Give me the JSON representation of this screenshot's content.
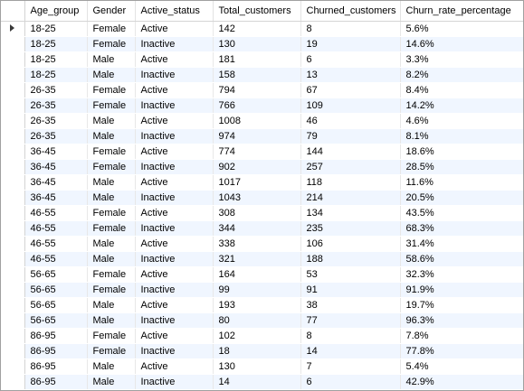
{
  "grid": {
    "columns": [
      "Age_group",
      "Gender",
      "Active_status",
      "Total_customers",
      "Churned_customers",
      "Churn_rate_percentage"
    ],
    "current_row_marker": "row-pointer-icon",
    "rows": [
      [
        "18-25",
        "Female",
        "Active",
        "142",
        "8",
        "5.6%"
      ],
      [
        "18-25",
        "Female",
        "Inactive",
        "130",
        "19",
        "14.6%"
      ],
      [
        "18-25",
        "Male",
        "Active",
        "181",
        "6",
        "3.3%"
      ],
      [
        "18-25",
        "Male",
        "Inactive",
        "158",
        "13",
        "8.2%"
      ],
      [
        "26-35",
        "Female",
        "Active",
        "794",
        "67",
        "8.4%"
      ],
      [
        "26-35",
        "Female",
        "Inactive",
        "766",
        "109",
        "14.2%"
      ],
      [
        "26-35",
        "Male",
        "Active",
        "1008",
        "46",
        "4.6%"
      ],
      [
        "26-35",
        "Male",
        "Inactive",
        "974",
        "79",
        "8.1%"
      ],
      [
        "36-45",
        "Female",
        "Active",
        "774",
        "144",
        "18.6%"
      ],
      [
        "36-45",
        "Female",
        "Inactive",
        "902",
        "257",
        "28.5%"
      ],
      [
        "36-45",
        "Male",
        "Active",
        "1017",
        "118",
        "11.6%"
      ],
      [
        "36-45",
        "Male",
        "Inactive",
        "1043",
        "214",
        "20.5%"
      ],
      [
        "46-55",
        "Female",
        "Active",
        "308",
        "134",
        "43.5%"
      ],
      [
        "46-55",
        "Female",
        "Inactive",
        "344",
        "235",
        "68.3%"
      ],
      [
        "46-55",
        "Male",
        "Active",
        "338",
        "106",
        "31.4%"
      ],
      [
        "46-55",
        "Male",
        "Inactive",
        "321",
        "188",
        "58.6%"
      ],
      [
        "56-65",
        "Female",
        "Active",
        "164",
        "53",
        "32.3%"
      ],
      [
        "56-65",
        "Female",
        "Inactive",
        "99",
        "91",
        "91.9%"
      ],
      [
        "56-65",
        "Male",
        "Active",
        "193",
        "38",
        "19.7%"
      ],
      [
        "56-65",
        "Male",
        "Inactive",
        "80",
        "77",
        "96.3%"
      ],
      [
        "86-95",
        "Female",
        "Active",
        "102",
        "8",
        "7.8%"
      ],
      [
        "86-95",
        "Female",
        "Inactive",
        "18",
        "14",
        "77.8%"
      ],
      [
        "86-95",
        "Male",
        "Active",
        "130",
        "7",
        "5.4%"
      ],
      [
        "86-95",
        "Male",
        "Inactive",
        "14",
        "6",
        "42.9%"
      ]
    ]
  }
}
